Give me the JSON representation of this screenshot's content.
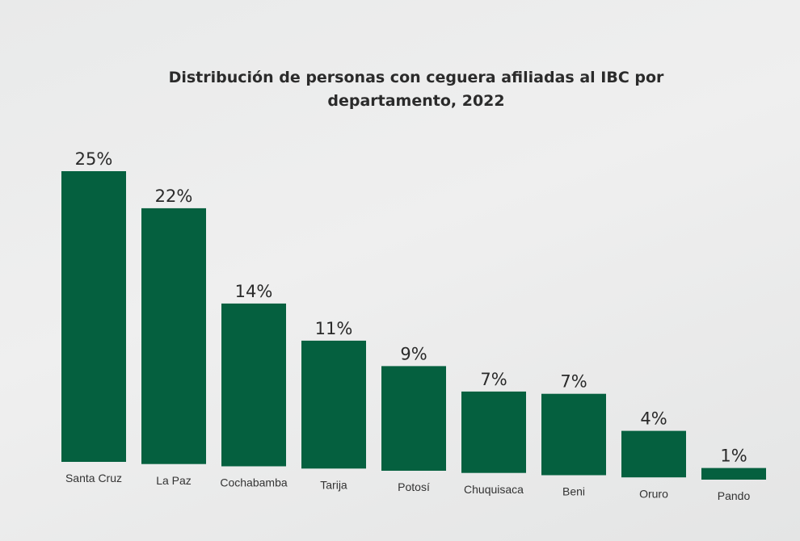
{
  "chart_data": {
    "type": "bar",
    "title_lines": [
      "Distribución de personas con ceguera afiliadas al IBC por",
      "departamento, 2022"
    ],
    "categories": [
      "Santa Cruz",
      "La Paz",
      "Cochabamba",
      "Tarija",
      "Potosí",
      "Chuquisaca",
      "Beni",
      "Oruro",
      "Pando"
    ],
    "values": [
      25,
      22,
      14,
      11,
      9,
      7,
      7,
      4,
      1
    ],
    "value_labels": [
      "25%",
      "22%",
      "14%",
      "11%",
      "9%",
      "7%",
      "7%",
      "4%",
      "1%"
    ],
    "bar_color": "#05603f",
    "grid": false,
    "legend": "none"
  }
}
